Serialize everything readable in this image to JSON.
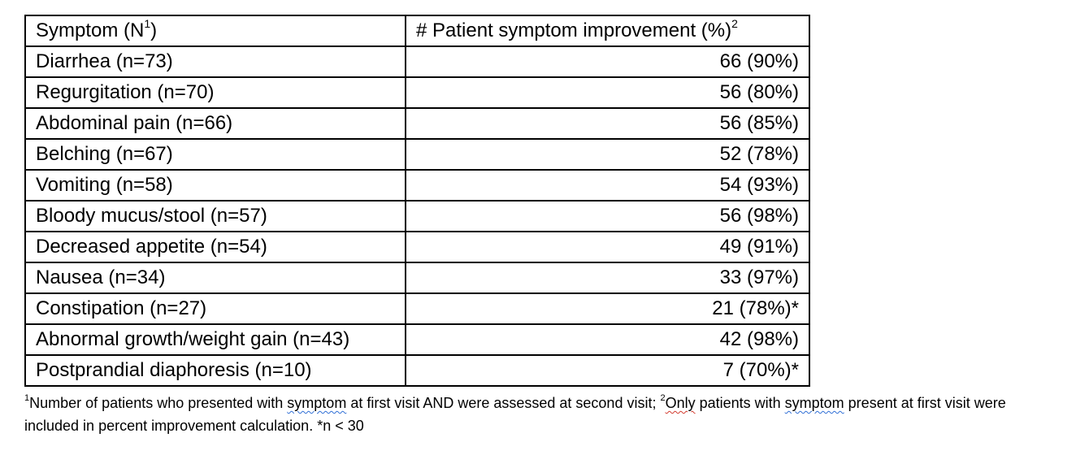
{
  "table": {
    "header": {
      "col1_label": "Symptom (N",
      "col1_sup": "1",
      "col1_close": ")",
      "col2_label": "# Patient symptom improvement (%)",
      "col2_sup": "2"
    },
    "rows": [
      {
        "symptom": "Diarrhea (n=73)",
        "improvement": "66 (90%)"
      },
      {
        "symptom": "Regurgitation (n=70)",
        "improvement": "56 (80%)"
      },
      {
        "symptom": "Abdominal pain (n=66)",
        "improvement": "56 (85%)"
      },
      {
        "symptom": "Belching (n=67)",
        "improvement": "52 (78%)"
      },
      {
        "symptom": "Vomiting (n=58)",
        "improvement": "54 (93%)"
      },
      {
        "symptom": "Bloody mucus/stool (n=57)",
        "improvement": "56 (98%)"
      },
      {
        "symptom": "Decreased appetite (n=54)",
        "improvement": "49 (91%)"
      },
      {
        "symptom": "Nausea (n=34)",
        "improvement": "33 (97%)"
      },
      {
        "symptom": "Constipation (n=27)",
        "improvement": "21 (78%)*"
      },
      {
        "symptom": "Abnormal growth/weight gain (n=43)",
        "improvement": "42 (98%)"
      },
      {
        "symptom": "Postprandial diaphoresis (n=10)",
        "improvement": "7 (70%)*"
      }
    ]
  },
  "footnote": {
    "sup1": "1",
    "part1": "Number of patients who presented with ",
    "word1": "symptom",
    "part2": " at first visit AND were assessed at second visit; ",
    "sup2": "2",
    "word2": "Only",
    "part3": " patients with ",
    "word3": "symptom",
    "part4": " present at first visit were included in percent improvement calculation. *n < 30"
  }
}
